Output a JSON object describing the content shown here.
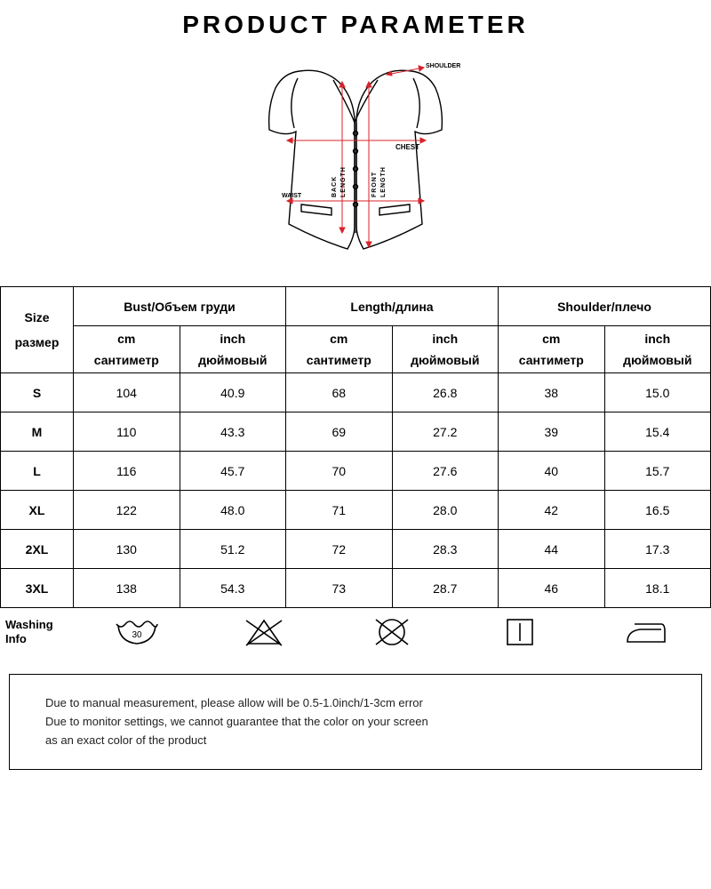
{
  "title": "PRODUCT   PARAMETER",
  "diagram": {
    "labels": {
      "shoulder": "SHOULDER",
      "chest": "CHEST",
      "front_length": "FRONT\nLENGTH",
      "back_length": "BACK\nLENGTH",
      "waist": "WAIST"
    },
    "outline_color": "#000000",
    "guide_color": "#d8232a",
    "stroke_width": 1.4
  },
  "table": {
    "size_header_top": "Size",
    "size_header_bottom": "размер",
    "groups": [
      {
        "label": "Bust/Объем груди",
        "cm": "cm",
        "inch": "inch",
        "cm_sub": "сантиметр",
        "inch_sub": "дюймовый"
      },
      {
        "label": "Length/длина",
        "cm": "cm",
        "inch": "inch",
        "cm_sub": "сантиметр",
        "inch_sub": "дюймовый"
      },
      {
        "label": "Shoulder/плечо",
        "cm": "cm",
        "inch": "inch",
        "cm_sub": "сантиметр",
        "inch_sub": "дюймовый"
      }
    ],
    "rows": [
      {
        "size": "S",
        "bust_cm": "104",
        "bust_in": "40.9",
        "len_cm": "68",
        "len_in": "26.8",
        "sh_cm": "38",
        "sh_in": "15.0"
      },
      {
        "size": "M",
        "bust_cm": "110",
        "bust_in": "43.3",
        "len_cm": "69",
        "len_in": "27.2",
        "sh_cm": "39",
        "sh_in": "15.4"
      },
      {
        "size": "L",
        "bust_cm": "116",
        "bust_in": "45.7",
        "len_cm": "70",
        "len_in": "27.6",
        "sh_cm": "40",
        "sh_in": "15.7"
      },
      {
        "size": "XL",
        "bust_cm": "122",
        "bust_in": "48.0",
        "len_cm": "71",
        "len_in": "28.0",
        "sh_cm": "42",
        "sh_in": "16.5"
      },
      {
        "size": "2XL",
        "bust_cm": "130",
        "bust_in": "51.2",
        "len_cm": "72",
        "len_in": "28.3",
        "sh_cm": "44",
        "sh_in": "17.3"
      },
      {
        "size": "3XL",
        "bust_cm": "138",
        "bust_in": "54.3",
        "len_cm": "73",
        "len_in": "28.7",
        "sh_cm": "46",
        "sh_in": "18.1"
      }
    ]
  },
  "washing": {
    "label": "Washing\nInfo",
    "icons": [
      "wash-30-icon",
      "no-bleach-icon",
      "no-tumble-dry-icon",
      "dry-flat-icon",
      "iron-icon"
    ]
  },
  "notice": {
    "line1": "Due to manual measurement, please allow will be 0.5-1.0inch/1-3cm error",
    "line2": "Due to monitor settings, we cannot guarantee that the color on your screen",
    "line3": "as an exact color of the product"
  }
}
